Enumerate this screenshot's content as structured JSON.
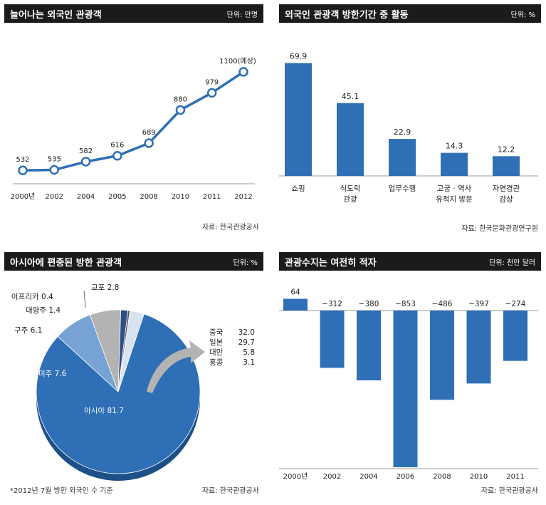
{
  "chart_data": [
    {
      "type": "line",
      "title": "늘어나는 외국인 관광객",
      "unit": "단위: 만명",
      "x": [
        "2000년",
        "2002",
        "2004",
        "2005",
        "2008",
        "2010",
        "2011",
        "2012"
      ],
      "values": [
        532,
        535,
        582,
        616,
        689,
        880,
        979,
        1100
      ],
      "value_labels": [
        "532",
        "535",
        "582",
        "616",
        "689",
        "880",
        "979",
        "1100(예상)"
      ],
      "source": "자료: 한국관광공사",
      "color": "#2e6fb6"
    },
    {
      "type": "bar",
      "title": "외국인 관광객 방한기간 중 활동",
      "unit": "단위: %",
      "categories": [
        "쇼핑",
        "식도락 관광",
        "업무수행",
        "고궁·역사 유적지 방문",
        "자연경관 감상"
      ],
      "category_lines": [
        [
          "쇼핑"
        ],
        [
          "식도락",
          "관광"
        ],
        [
          "업무수행"
        ],
        [
          "고궁 · 역사",
          "유적지 방문"
        ],
        [
          "자연경관",
          "감상"
        ]
      ],
      "values": [
        69.9,
        45.1,
        22.9,
        14.3,
        12.2
      ],
      "value_labels": [
        "69.9",
        "45.1",
        "22.9",
        "14.3",
        "12.2"
      ],
      "ylim": [
        0,
        75
      ],
      "source": "자료: 한국문화관광연구원",
      "color": "#2e6fb6"
    },
    {
      "type": "pie",
      "title": "아시아에 편중된 방한 관광객",
      "unit": "단위: %",
      "slices": [
        {
          "label": "아시아",
          "value": 81.7,
          "text": "아시아 81.7",
          "color": "#2e6fb6"
        },
        {
          "label": "미주",
          "value": 7.6,
          "text": "미주 7.6",
          "color": "#76a3d3"
        },
        {
          "label": "구주",
          "value": 6.1,
          "text": "구주 6.1",
          "color": "#b3b3b3"
        },
        {
          "label": "대양주",
          "value": 1.4,
          "text": "대양주 1.4",
          "color": "#2e4f88"
        },
        {
          "label": "아프리카",
          "value": 0.4,
          "text": "아프리카 0.4",
          "color": "#555555"
        },
        {
          "label": "교포",
          "value": 2.8,
          "text": "교포 2.8",
          "color": "#d9e3f0"
        }
      ],
      "asia_breakdown": [
        {
          "label": "중국",
          "value": "32.0"
        },
        {
          "label": "일본",
          "value": "29.7"
        },
        {
          "label": "대만",
          "value": "5.8"
        },
        {
          "label": "홍콩",
          "value": "3.1"
        }
      ],
      "note": "*2012년 7월 방한 외국인 수 기준",
      "source": "자료: 한국관광공사"
    },
    {
      "type": "bar",
      "title": "관광수지는 여전히 적자",
      "unit": "단위: 천만 달러",
      "categories": [
        "2000년",
        "2002",
        "2004",
        "2006",
        "2008",
        "2010",
        "2011"
      ],
      "values": [
        64,
        -312,
        -380,
        -853,
        -486,
        -397,
        -274
      ],
      "value_labels": [
        "64",
        "−312",
        "−380",
        "−853",
        "−486",
        "−397",
        "−274"
      ],
      "ylim": [
        -900,
        100
      ],
      "source": "자료: 한국관광공사",
      "color": "#2e6fb6"
    }
  ]
}
